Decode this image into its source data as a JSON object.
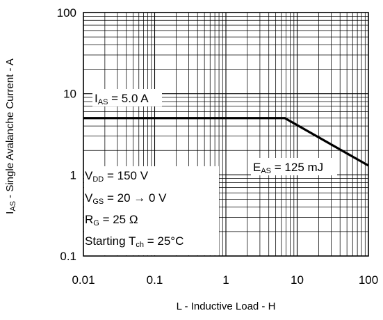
{
  "chart_data": {
    "type": "line",
    "x_scale": "log",
    "y_scale": "log",
    "xlim": [
      0.01,
      100
    ],
    "ylim": [
      0.1,
      100
    ],
    "grid": true,
    "xlabel": "L - Inductive Load - H",
    "ylabel": {
      "main": "I",
      "sub": "AS",
      "rest": " - Single Avalanche Current - A"
    },
    "x_ticks": [
      0.01,
      0.1,
      1,
      10,
      100
    ],
    "x_tick_labels": [
      "0.01",
      "0.1",
      "1",
      "10",
      "100"
    ],
    "y_ticks": [
      0.1,
      1,
      10,
      100
    ],
    "y_tick_labels": [
      "0.1",
      "1",
      "10",
      "100"
    ],
    "series": [
      {
        "x": [
          0.01,
          6.7,
          100
        ],
        "y": [
          5.0,
          5.0,
          1.3
        ]
      }
    ],
    "annotations": {
      "ias": {
        "main": "I",
        "sub": "AS",
        "rest": " = 5.0 A"
      },
      "eas": {
        "main": "E",
        "sub": "AS",
        "rest": " = 125 mJ"
      },
      "vdd": {
        "main": "V",
        "sub": "DD",
        "rest": " = 150 V"
      },
      "vgs": {
        "main": "V",
        "sub": "GS",
        "rest": " = 20 → 0 V"
      },
      "rg": {
        "main": "R",
        "sub": "G",
        "rest": " = 25 Ω"
      },
      "tch": {
        "main": "Starting T",
        "sub": "ch",
        "rest": " = 25°C"
      }
    }
  }
}
